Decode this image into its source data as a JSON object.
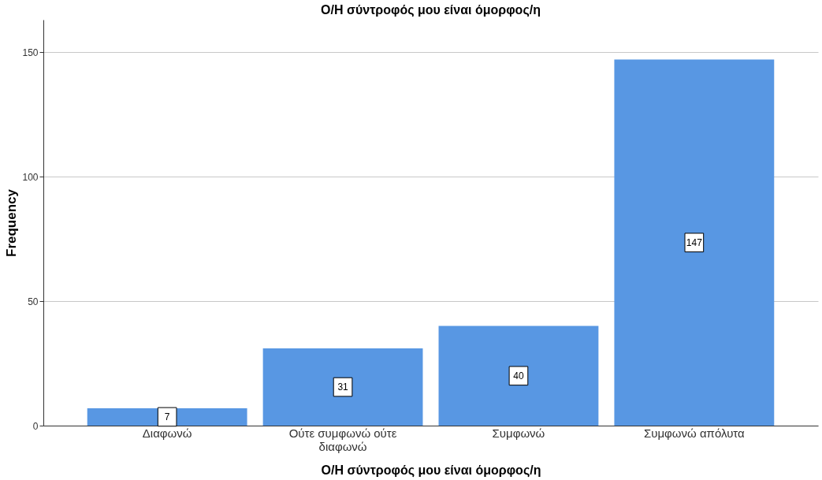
{
  "chart_data": {
    "type": "bar",
    "title": "Ο/Η σύντροφός μου είναι όμορφος/η",
    "xlabel": "Ο/Η σύντροφός μου είναι όμορφος/η",
    "ylabel": "Frequency",
    "categories": [
      "Διαφωνώ",
      "Ούτε συμφωνώ ούτε διαφωνώ",
      "Συμφωνώ",
      "Συμφωνώ απόλυτα"
    ],
    "values": [
      7,
      31,
      40,
      147
    ],
    "color": "#5897e3",
    "ylim": [
      0,
      163
    ],
    "yticks": [
      0,
      50,
      100,
      150
    ],
    "grid": "y",
    "data_labels": true
  }
}
